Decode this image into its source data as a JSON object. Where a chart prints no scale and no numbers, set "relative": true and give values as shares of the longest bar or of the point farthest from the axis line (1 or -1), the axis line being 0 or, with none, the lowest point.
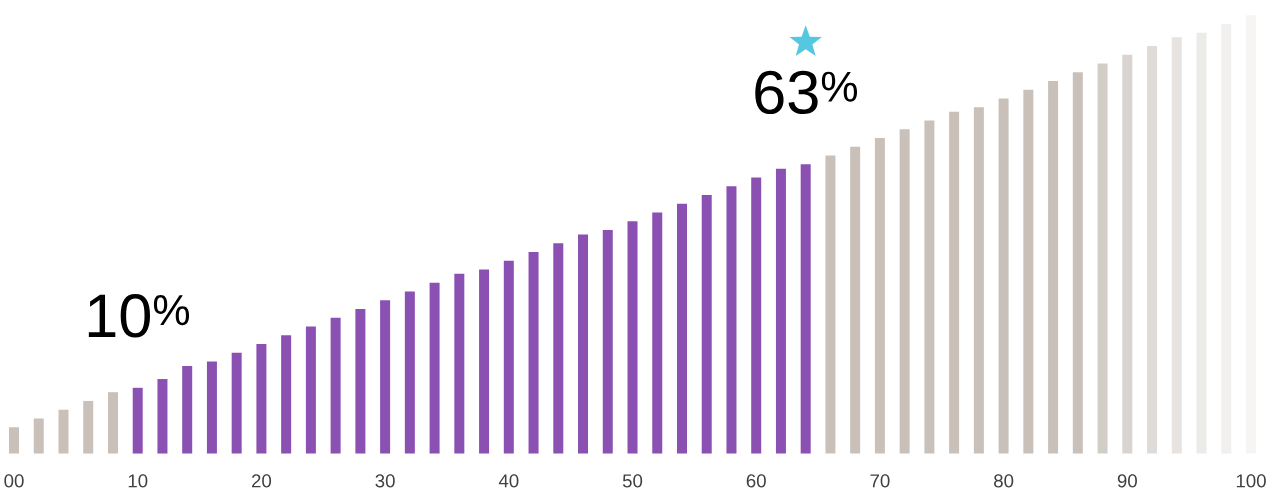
{
  "chart_data": {
    "type": "bar",
    "relative": true,
    "x": [
      0,
      2,
      4,
      6,
      8,
      10,
      12,
      14,
      16,
      18,
      20,
      22,
      24,
      26,
      28,
      30,
      32,
      34,
      36,
      38,
      40,
      42,
      44,
      46,
      48,
      50,
      52,
      54,
      56,
      58,
      60,
      62,
      64,
      66,
      68,
      70,
      72,
      74,
      76,
      78,
      80,
      82,
      84,
      86,
      88,
      90,
      92,
      94,
      96,
      98,
      100
    ],
    "values": [
      0.06,
      0.08,
      0.1,
      0.12,
      0.14,
      0.15,
      0.17,
      0.2,
      0.21,
      0.23,
      0.25,
      0.27,
      0.29,
      0.31,
      0.33,
      0.35,
      0.37,
      0.39,
      0.41,
      0.42,
      0.44,
      0.46,
      0.48,
      0.5,
      0.51,
      0.53,
      0.55,
      0.57,
      0.59,
      0.61,
      0.63,
      0.65,
      0.66,
      0.68,
      0.7,
      0.72,
      0.74,
      0.76,
      0.78,
      0.79,
      0.81,
      0.83,
      0.85,
      0.87,
      0.89,
      0.91,
      0.93,
      0.95,
      0.96,
      0.98,
      1.0
    ],
    "colors": [
      "#c9c1b9",
      "#c9c1b9",
      "#c9c1b9",
      "#c9c1b9",
      "#c9c1b9",
      "#8a50b2",
      "#8a50b2",
      "#8a50b2",
      "#8a50b2",
      "#8a50b2",
      "#8a50b2",
      "#8a50b2",
      "#8a50b2",
      "#8a50b2",
      "#8a50b2",
      "#8a50b2",
      "#8a50b2",
      "#8a50b2",
      "#8a50b2",
      "#8a50b2",
      "#8a50b2",
      "#8a50b2",
      "#8a50b2",
      "#8a50b2",
      "#8a50b2",
      "#8a50b2",
      "#8a50b2",
      "#8a50b2",
      "#8a50b2",
      "#8a50b2",
      "#8a50b2",
      "#8a50b2",
      "#8a50b2",
      "#c9c1b9",
      "#c9c1b9",
      "#c9c1b9",
      "#c9c1b9",
      "#c9c1b9",
      "#c9c1b9",
      "#c9c1b9",
      "#c9c1b9",
      "#c9c1b9",
      "#c9c1b9",
      "#c9c1b9",
      "#d3cdc7",
      "#d9d4cf",
      "#dfdbd7",
      "#e6e3e0",
      "#ecebe8",
      "#f1f0ee",
      "#f6f5f4"
    ],
    "xlim": [
      0,
      100
    ],
    "xticks": [
      {
        "value": 0,
        "label": "00"
      },
      10,
      20,
      30,
      40,
      50,
      60,
      70,
      80,
      90,
      100
    ],
    "annotations": [
      {
        "text": "10$^{%}$",
        "x": 10,
        "y": 0.15
      },
      {
        "text": "63$^{%}$",
        "x": 64,
        "y": 0.66
      }
    ]
  }
}
